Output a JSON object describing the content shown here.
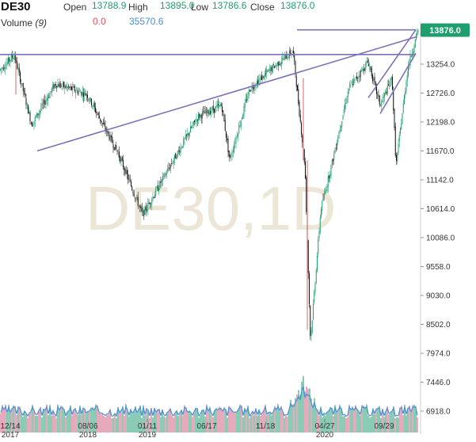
{
  "legend": {
    "symbol": "DE30",
    "open_label": "Open",
    "open_value": "13788.9",
    "high_label": "High",
    "high_value": "13895.0",
    "low_label": "Low",
    "low_value": "13786.6",
    "close_label": "Close",
    "close_value": "13876.0",
    "volume_label": "Volume",
    "volume_period": "(9)",
    "volume_value_1": "0.0",
    "volume_value_2": "35570.6"
  },
  "watermark": "DE30,1D",
  "current_price": "13876.0",
  "colors": {
    "up": "#1f9e6e",
    "down": "#e0535a",
    "trendline": "#7b72b8",
    "price_badge": "#1f9e6e",
    "volume_ma": "#4a8fd6"
  },
  "chart_data": {
    "type": "candlestick",
    "y_ticks": [
      "13254.0",
      "12726.0",
      "12198.0",
      "11670.0",
      "11142.0",
      "10614.0",
      "10086.0",
      "9558.0",
      "9030.0",
      "8502.0",
      "7974.0",
      "7446.0",
      "6918.0"
    ],
    "x_ticks": [
      {
        "top": "12/14",
        "bottom": "2017"
      },
      {
        "top": "08/06",
        "bottom": "2018"
      },
      {
        "top": "01/11",
        "bottom": "2019"
      },
      {
        "top": "06/17",
        "bottom": ""
      },
      {
        "top": "11/18",
        "bottom": ""
      },
      {
        "top": "04/27",
        "bottom": "2020"
      },
      {
        "top": "09/29",
        "bottom": ""
      }
    ],
    "path": [
      [
        0,
        13150
      ],
      [
        18,
        13420
      ],
      [
        40,
        12150
      ],
      [
        70,
        12900
      ],
      [
        110,
        12700
      ],
      [
        150,
        11600
      ],
      [
        180,
        10500
      ],
      [
        215,
        11400
      ],
      [
        250,
        12300
      ],
      [
        280,
        12500
      ],
      [
        290,
        11500
      ],
      [
        315,
        12800
      ],
      [
        345,
        13200
      ],
      [
        370,
        13500
      ],
      [
        385,
        11400
      ],
      [
        392,
        8200
      ],
      [
        405,
        10600
      ],
      [
        420,
        11500
      ],
      [
        440,
        12800
      ],
      [
        465,
        13300
      ],
      [
        480,
        12500
      ],
      [
        495,
        13000
      ],
      [
        500,
        11400
      ],
      [
        515,
        13200
      ],
      [
        528,
        13876
      ]
    ],
    "trendlines": [
      {
        "x1": 47,
        "y1": 11670,
        "x2": 525,
        "y2": 13750
      },
      {
        "x1": 0,
        "y1": 13430,
        "x2": 525,
        "y2": 13430
      },
      {
        "x1": 375,
        "y1": 13880,
        "x2": 525,
        "y2": 13880
      },
      {
        "x1": 465,
        "y1": 12640,
        "x2": 525,
        "y2": 13880
      },
      {
        "x1": 480,
        "y1": 12350,
        "x2": 525,
        "y2": 13450
      }
    ],
    "volume": {
      "spike_x": 383,
      "ma_visible": true
    }
  }
}
